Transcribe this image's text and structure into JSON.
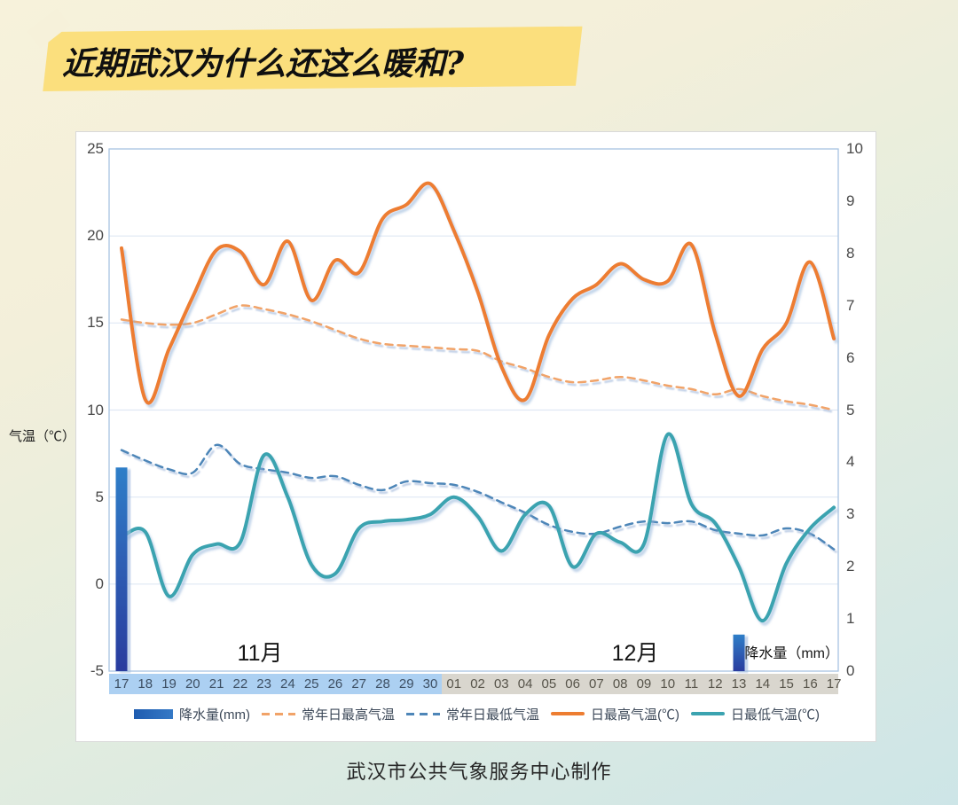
{
  "page": {
    "title": "近期武汉为什么还这么暖和?",
    "footer": "武汉市公共气象服务中心制作"
  },
  "chart": {
    "y_left_title": "气温（℃）",
    "precip_label": "降水量（mm）",
    "month_november": "11月",
    "month_december": "12月"
  },
  "chart_data": {
    "type": "line+bar combo",
    "x": [
      "17",
      "18",
      "19",
      "20",
      "21",
      "22",
      "23",
      "24",
      "25",
      "26",
      "27",
      "28",
      "29",
      "30",
      "01",
      "02",
      "03",
      "04",
      "05",
      "06",
      "07",
      "08",
      "09",
      "10",
      "11",
      "12",
      "13",
      "14",
      "15",
      "16",
      "17"
    ],
    "x_month_split_index": 14,
    "x_months": [
      "11月",
      "12月"
    ],
    "y_left_axis": {
      "title": "气温（℃）",
      "min": -5,
      "max": 25,
      "ticks": [
        25,
        20,
        15,
        10,
        5,
        0,
        -5
      ],
      "grid": true
    },
    "y_right_axis": {
      "title": "降水量（mm）",
      "min": 0,
      "max": 10,
      "ticks": [
        10,
        9,
        8,
        7,
        6,
        5,
        4,
        3,
        2,
        1,
        0
      ],
      "grid": false
    },
    "legend_position": "bottom",
    "series": [
      {
        "name": "降水量(mm)",
        "type": "bar",
        "axis": "right",
        "style": "solid",
        "color": "#2f7ec8",
        "color_bottom": "#2b3c9e",
        "values": [
          3.9,
          0,
          0,
          0,
          0,
          0,
          0,
          0,
          0,
          0,
          0,
          0,
          0,
          0,
          0,
          0,
          0,
          0,
          0,
          0,
          0,
          0,
          0,
          0,
          0,
          0,
          0.7,
          0,
          0,
          0,
          0
        ]
      },
      {
        "name": "常年日最高气温",
        "type": "line",
        "axis": "left",
        "style": "dashed",
        "color": "#f1a368",
        "values": [
          15.2,
          15.0,
          14.9,
          15.0,
          15.5,
          16.0,
          15.8,
          15.5,
          15.1,
          14.6,
          14.1,
          13.8,
          13.7,
          13.6,
          13.5,
          13.4,
          12.8,
          12.4,
          11.9,
          11.6,
          11.7,
          11.9,
          11.7,
          11.4,
          11.2,
          10.9,
          11.2,
          10.8,
          10.5,
          10.3,
          10.0
        ]
      },
      {
        "name": "常年日最低气温",
        "type": "line",
        "axis": "left",
        "style": "dashed",
        "color": "#4e86b8",
        "values": [
          7.7,
          7.1,
          6.6,
          6.4,
          8.0,
          6.9,
          6.6,
          6.4,
          6.1,
          6.2,
          5.7,
          5.4,
          5.9,
          5.8,
          5.7,
          5.3,
          4.7,
          4.1,
          3.4,
          3.0,
          2.9,
          3.3,
          3.6,
          3.5,
          3.6,
          3.1,
          2.9,
          2.8,
          3.2,
          2.9,
          2.0
        ]
      },
      {
        "name": "日最高气温(℃)",
        "type": "line",
        "axis": "left",
        "style": "solid",
        "color": "#ed7d31",
        "values": [
          19.3,
          10.6,
          13.5,
          16.5,
          19.2,
          19.1,
          17.2,
          19.7,
          16.3,
          18.6,
          17.9,
          21.0,
          21.8,
          23.0,
          20.3,
          16.8,
          12.5,
          10.6,
          14.3,
          16.4,
          17.2,
          18.4,
          17.5,
          17.4,
          19.5,
          14.4,
          10.8,
          13.5,
          15.0,
          18.5,
          14.1
        ]
      },
      {
        "name": "日最低气温(℃)",
        "type": "line",
        "axis": "left",
        "style": "solid",
        "color": "#3ba3b0",
        "values": [
          2.7,
          3.0,
          -0.7,
          1.7,
          2.3,
          2.4,
          7.4,
          5.0,
          1.1,
          0.6,
          3.2,
          3.6,
          3.7,
          4.0,
          5.0,
          3.9,
          1.9,
          4.0,
          4.5,
          1.0,
          2.9,
          2.4,
          2.3,
          8.6,
          4.6,
          3.5,
          1.0,
          -2.1,
          1.2,
          3.2,
          4.4
        ]
      }
    ]
  }
}
